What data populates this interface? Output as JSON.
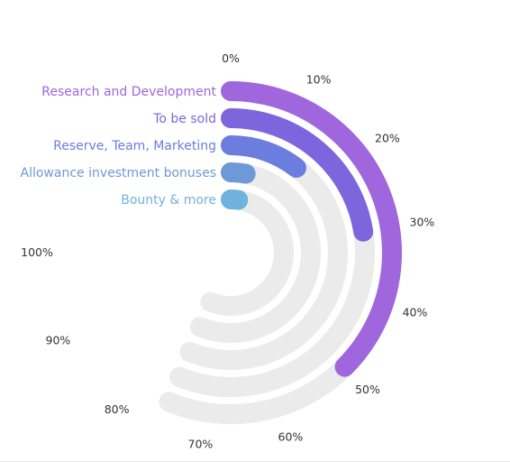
{
  "chart_data": {
    "type": "radial-bar",
    "title": "",
    "value_unit": "%",
    "scale": [
      0,
      100
    ],
    "ticks": [
      "0%",
      "10%",
      "20%",
      "30%",
      "40%",
      "50%",
      "60%",
      "70%",
      "80%",
      "90%",
      "100%"
    ],
    "series": [
      {
        "name": "Research and Development",
        "value": 50,
        "color": "#a066dd"
      },
      {
        "name": "To be sold",
        "value": 30,
        "color": "#7d66dd"
      },
      {
        "name": "Reserve, Team, Marketing",
        "value": 14,
        "color": "#6b7ddf"
      },
      {
        "name": "Allowance investment bonuses",
        "value": 4,
        "color": "#6e98d8"
      },
      {
        "name": "Bounty & more",
        "value": 3,
        "color": "#6eb3dd"
      }
    ],
    "track_color": "#ebebeb",
    "track_extent_percent": 75,
    "start_angle_position": "top",
    "direction": "clockwise",
    "legend_placement": "left, aligned with each ring start"
  }
}
